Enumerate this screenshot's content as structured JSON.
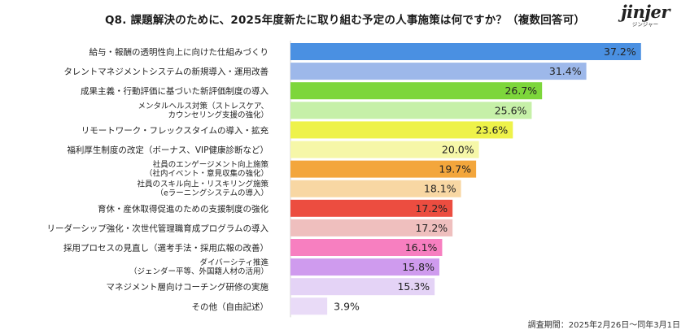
{
  "title": "Q8. 課題解決のために、2025年度新たに取り組む予定の人事施策は何ですか？（複数回答可）",
  "logo": {
    "word": "jinjer",
    "sub": "ジンジャー"
  },
  "footnote": "調査期間：2025年2月26日〜同年3月1日",
  "chart_data": {
    "type": "bar",
    "orientation": "horizontal",
    "unit": "%",
    "xlim": [
      0,
      100
    ],
    "categories": [
      [
        "給与・報酬の透明性向上に向けた仕組みづくり"
      ],
      [
        "タレントマネジメントシステムの新規導入・運用改善"
      ],
      [
        "成果主義・行動評価に基づいた新評価制度の導入"
      ],
      [
        "メンタルヘルス対策（ストレスケア、",
        "カウンセリング支援の強化）"
      ],
      [
        "リモートワーク・フレックスタイムの導入・拡充"
      ],
      [
        "福利厚生制度の改定（ボーナス、VIP健康診断など）"
      ],
      [
        "社員のエンゲージメント向上施策",
        "（社内イベント・意見収集の強化）"
      ],
      [
        "社員のスキル向上・リスキリング施策",
        "（eラーニングシステムの導入）"
      ],
      [
        "育休・産休取得促進のための支援制度の強化"
      ],
      [
        "リーダーシップ強化・次世代管理職育成プログラムの導入"
      ],
      [
        "採用プロセスの見直し（選考手法・採用広報の改善）"
      ],
      [
        "ダイバーシティ推進",
        "（ジェンダー平等、外国籍人材の活用）"
      ],
      [
        "マネジメント層向けコーチング研修の実施"
      ],
      [
        "その他（自由記述）"
      ]
    ],
    "values": [
      37.2,
      31.4,
      26.7,
      25.6,
      23.6,
      20.0,
      19.7,
      18.1,
      17.2,
      17.2,
      16.1,
      15.8,
      15.3,
      3.9
    ],
    "value_labels": [
      "37.2%",
      "31.4%",
      "26.7%",
      "25.6%",
      "23.6%",
      "20.0%",
      "19.7%",
      "18.1%",
      "17.2%",
      "17.2%",
      "16.1%",
      "15.8%",
      "15.3%",
      "3.9%"
    ],
    "colors": [
      "#4a90e2",
      "#9db8ea",
      "#7dd63b",
      "#c6f0a8",
      "#eef24a",
      "#f6f7a8",
      "#f3a63c",
      "#f8d7a3",
      "#ec4d40",
      "#efbfbe",
      "#f77fc0",
      "#cf9bee",
      "#e4d3f6",
      "#e9dbf7"
    ]
  }
}
